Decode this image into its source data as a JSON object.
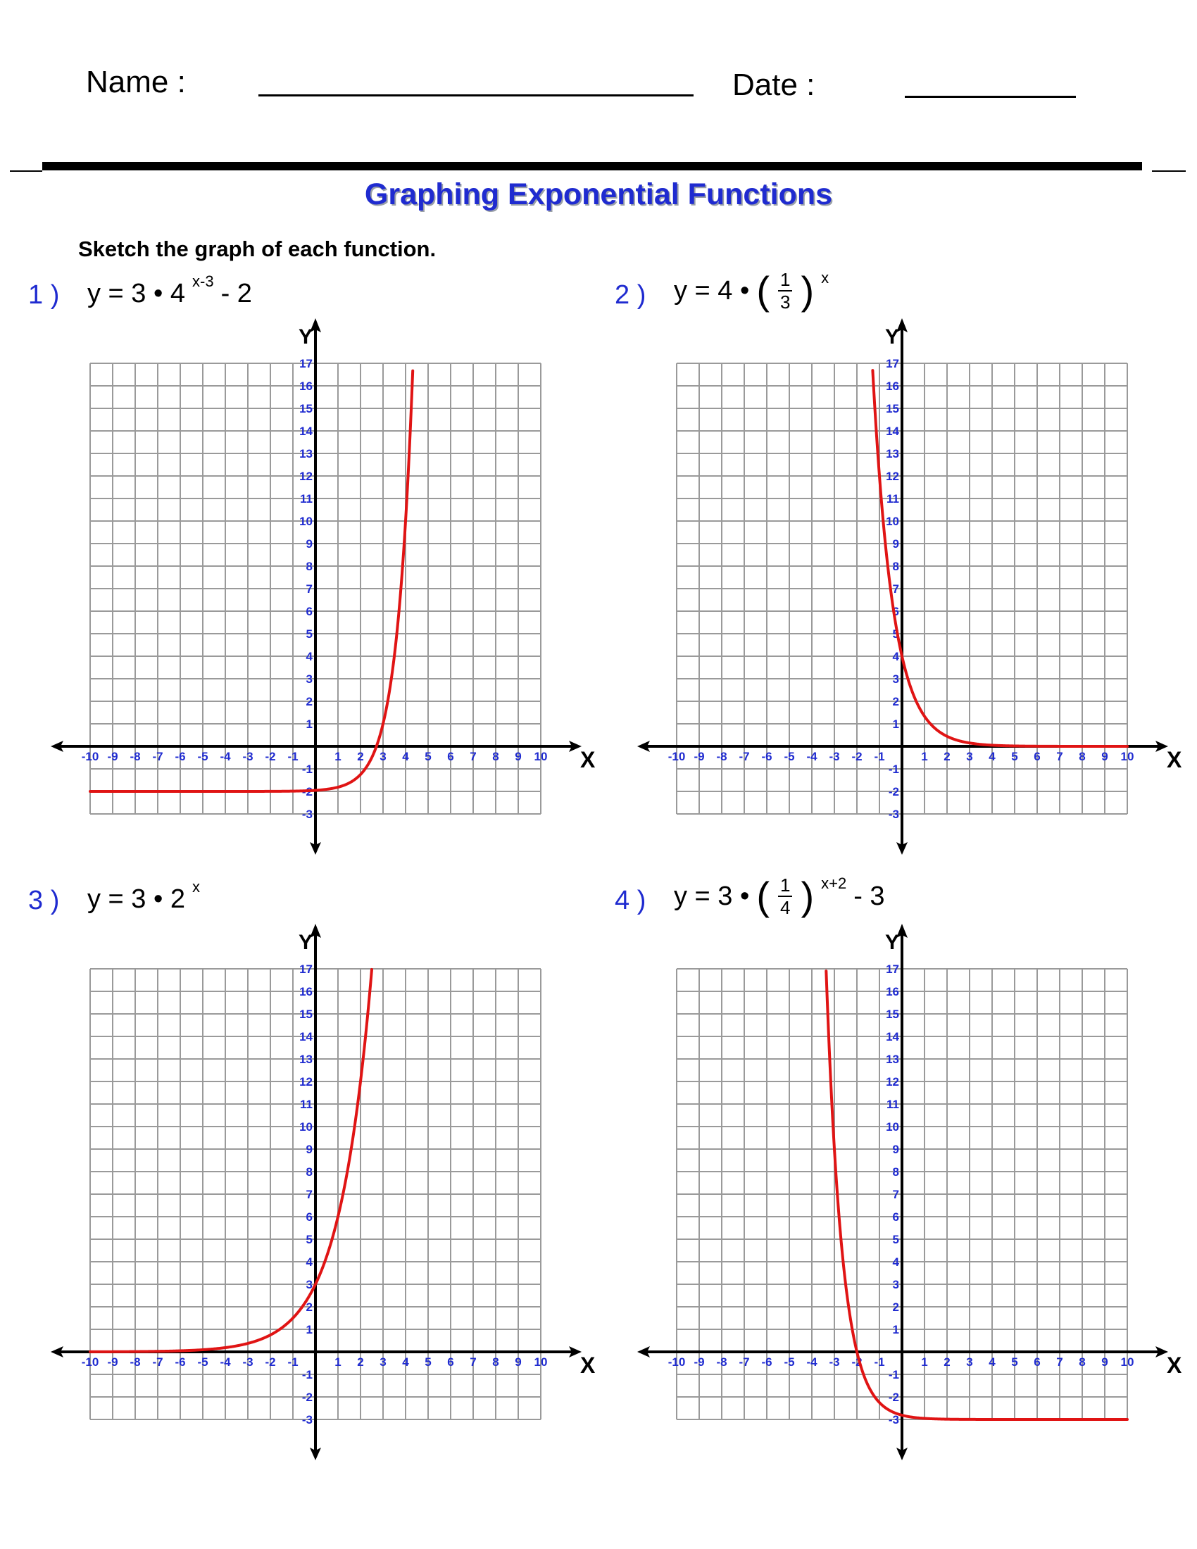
{
  "header": {
    "name_label": "Name :",
    "date_label": "Date :"
  },
  "title": "Graphing Exponential Functions",
  "instructions": "Sketch the graph of each function.",
  "colors": {
    "title": "#1f2bd0",
    "tick_labels": "#1f2bd0",
    "curve": "#e01414",
    "grid": "#9a9a9a"
  },
  "chart_data": [
    {
      "type": "line",
      "problem_number": "1 )",
      "formula": {
        "lhs": "y = 3 • 4",
        "exponent": "x-3",
        "tail": " - 2"
      },
      "xlabel": "X",
      "ylabel": "Y",
      "xlim": [
        -10,
        10
      ],
      "ylim": [
        -3,
        17
      ],
      "grid": true,
      "x_ticks": [
        "-10",
        "-9",
        "-8",
        "-7",
        "-6",
        "-5",
        "-4",
        "-3",
        "-2",
        "-1",
        "1",
        "2",
        "3",
        "4",
        "5",
        "6",
        "7",
        "8",
        "9",
        "10"
      ],
      "y_ticks": [
        "-3",
        "-2",
        "-1",
        "1",
        "2",
        "3",
        "4",
        "5",
        "6",
        "7",
        "8",
        "9",
        "10",
        "11",
        "12",
        "13",
        "14",
        "15",
        "16",
        "17"
      ],
      "series": [
        {
          "a": 3,
          "b": 4,
          "h": 3,
          "k": -2,
          "x_range": [
            -10,
            4.5
          ]
        }
      ]
    },
    {
      "type": "line",
      "problem_number": "2 )",
      "formula": {
        "lhs": "y = 4 •",
        "frac_num": "1",
        "frac_den": "3",
        "exponent": "x",
        "tail": ""
      },
      "xlabel": "X",
      "ylabel": "Y",
      "xlim": [
        -10,
        10
      ],
      "ylim": [
        -3,
        17
      ],
      "grid": true,
      "x_ticks": [
        "-10",
        "-9",
        "-8",
        "-7",
        "-6",
        "-5",
        "-4",
        "-3",
        "-2",
        "-1",
        "1",
        "2",
        "3",
        "4",
        "5",
        "6",
        "7",
        "8",
        "9",
        "10"
      ],
      "y_ticks": [
        "-3",
        "-2",
        "-1",
        "1",
        "2",
        "3",
        "4",
        "5",
        "6",
        "7",
        "8",
        "9",
        "10",
        "11",
        "12",
        "13",
        "14",
        "15",
        "16",
        "17"
      ],
      "series": [
        {
          "a": 4,
          "b": 0.3333333,
          "h": 0,
          "k": 0,
          "x_range": [
            -1.3,
            10
          ]
        }
      ]
    },
    {
      "type": "line",
      "problem_number": "3 )",
      "formula": {
        "lhs": "y = 3 • 2",
        "exponent": "x",
        "tail": ""
      },
      "xlabel": "X",
      "ylabel": "Y",
      "xlim": [
        -10,
        10
      ],
      "ylim": [
        -3,
        17
      ],
      "grid": true,
      "x_ticks": [
        "-10",
        "-9",
        "-8",
        "-7",
        "-6",
        "-5",
        "-4",
        "-3",
        "-2",
        "-1",
        "1",
        "2",
        "3",
        "4",
        "5",
        "6",
        "7",
        "8",
        "9",
        "10"
      ],
      "y_ticks": [
        "-3",
        "-2",
        "-1",
        "1",
        "2",
        "3",
        "4",
        "5",
        "6",
        "7",
        "8",
        "9",
        "10",
        "11",
        "12",
        "13",
        "14",
        "15",
        "16",
        "17"
      ],
      "series": [
        {
          "a": 3,
          "b": 2,
          "h": 0,
          "k": 0,
          "x_range": [
            -10,
            2.5
          ]
        }
      ]
    },
    {
      "type": "line",
      "problem_number": "4 )",
      "formula": {
        "lhs": "y = 3 •",
        "frac_num": "1",
        "frac_den": "4",
        "exponent": "x+2",
        "tail": " - 3"
      },
      "xlabel": "X",
      "ylabel": "Y",
      "xlim": [
        -10,
        10
      ],
      "ylim": [
        -3,
        17
      ],
      "grid": true,
      "x_ticks": [
        "-10",
        "-9",
        "-8",
        "-7",
        "-6",
        "-5",
        "-4",
        "-3",
        "-2",
        "-1",
        "1",
        "2",
        "3",
        "4",
        "5",
        "6",
        "7",
        "8",
        "9",
        "10"
      ],
      "y_ticks": [
        "-3",
        "-2",
        "-1",
        "1",
        "2",
        "3",
        "4",
        "5",
        "6",
        "7",
        "8",
        "9",
        "10",
        "11",
        "12",
        "13",
        "14",
        "15",
        "16",
        "17"
      ],
      "series": [
        {
          "a": 3,
          "b": 0.25,
          "h": -2,
          "k": -3,
          "x_range": [
            -3.5,
            10
          ]
        }
      ]
    }
  ]
}
